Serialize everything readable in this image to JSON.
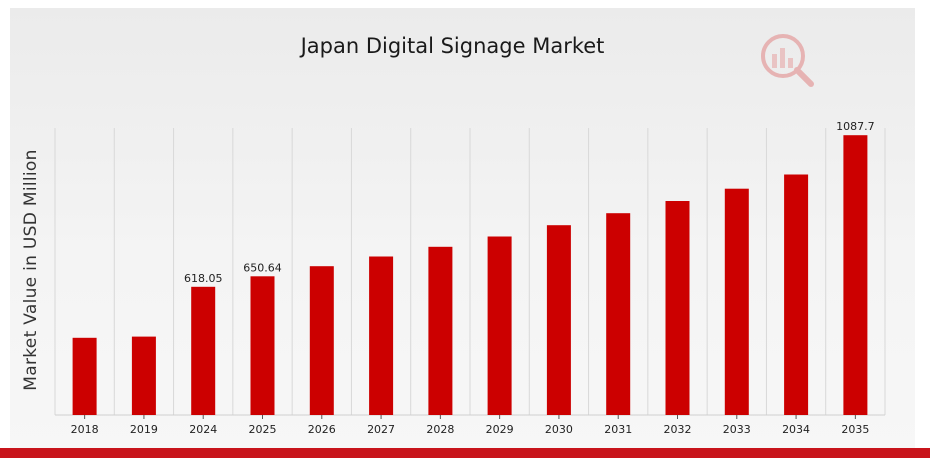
{
  "chart_data": {
    "type": "bar",
    "title": "Japan Digital Signage Market",
    "xlabel": "",
    "ylabel": "Market Value in USD Million",
    "categories": [
      "2018",
      "2019",
      "2024",
      "2025",
      "2026",
      "2027",
      "2028",
      "2029",
      "2030",
      "2031",
      "2032",
      "2033",
      "2034",
      "2035"
    ],
    "values": [
      460,
      464,
      618.05,
      650.64,
      682,
      712,
      742,
      774,
      809,
      846,
      884,
      922,
      966,
      1087.7
    ],
    "data_labels": {
      "2024": "618.05",
      "2025": "650.64",
      "2035": "1087.7"
    },
    "ylim": [
      221,
      1110
    ],
    "grid": "vertical",
    "colors": {
      "bar": "#cc0000",
      "accent_bar": "#c8141b"
    }
  },
  "logo": {
    "icon": "bar-chart-magnifier-logo"
  }
}
